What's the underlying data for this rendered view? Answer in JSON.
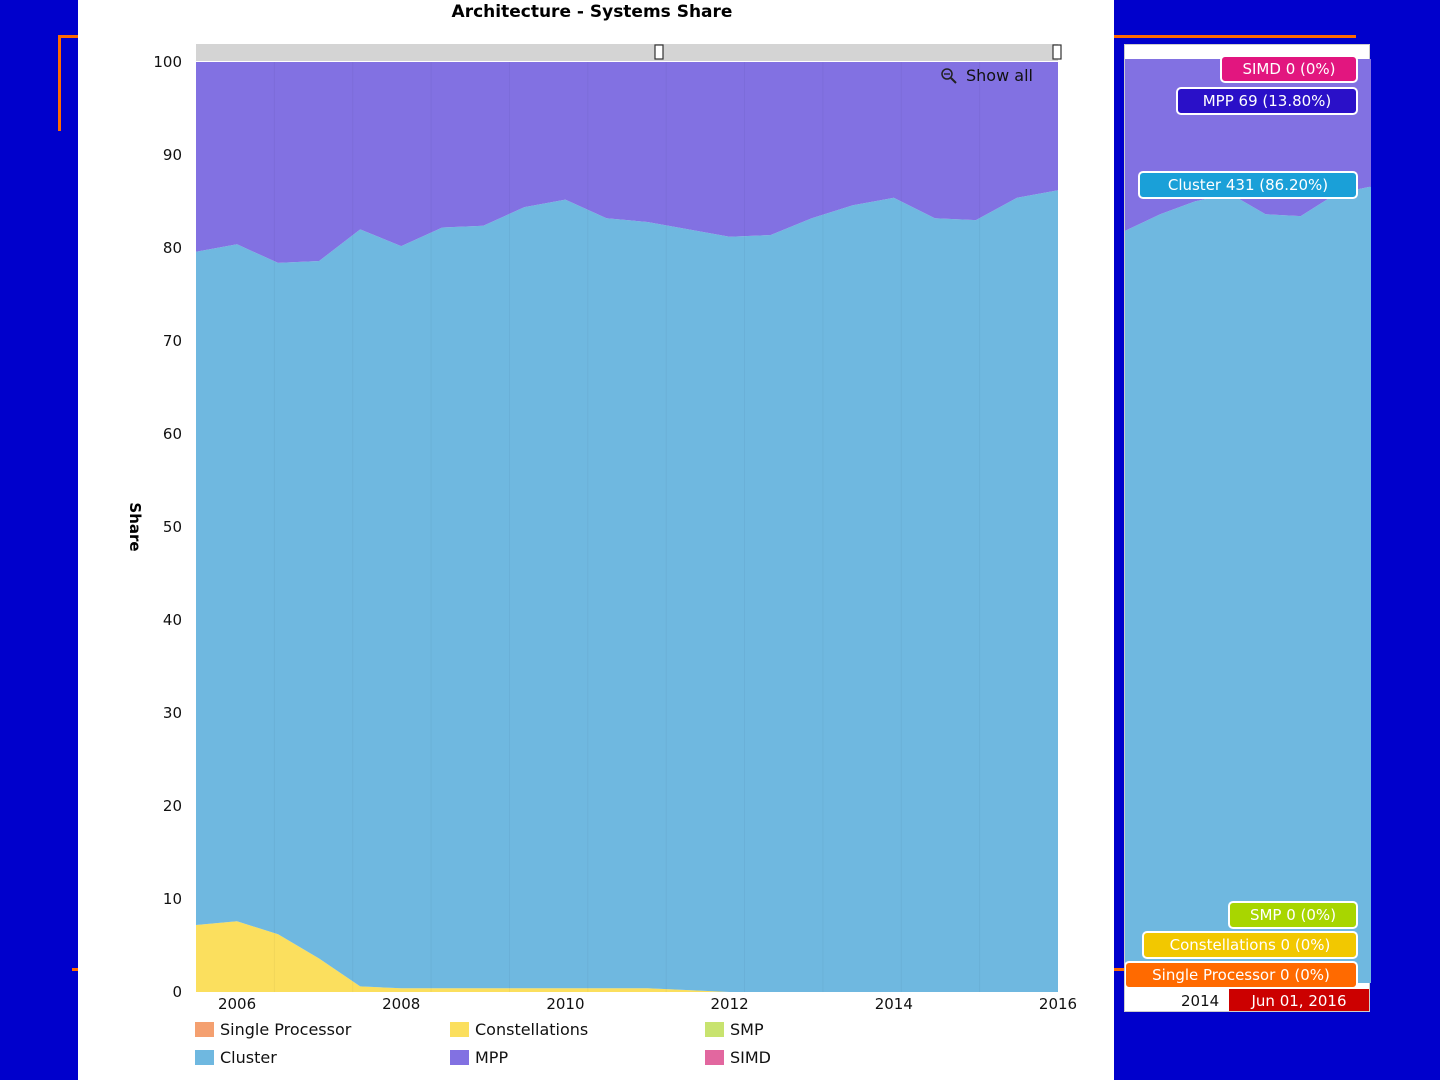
{
  "chart_data": {
    "type": "area",
    "stacked": true,
    "title": "Architecture - Systems Share",
    "ylabel": "Share",
    "xlabel": "",
    "ylim": [
      0,
      100
    ],
    "y_ticks": [
      0,
      10,
      20,
      30,
      40,
      50,
      60,
      70,
      80,
      90,
      100
    ],
    "x_ticks": [
      2006,
      2008,
      2010,
      2012,
      2014,
      2016
    ],
    "x": [
      2005.5,
      2006.0,
      2006.5,
      2007.0,
      2007.5,
      2008.0,
      2008.5,
      2009.0,
      2009.5,
      2010.0,
      2010.5,
      2011.0,
      2011.5,
      2012.0,
      2012.5,
      2013.0,
      2013.5,
      2014.0,
      2014.5,
      2015.0,
      2015.5,
      2016.0
    ],
    "series": [
      {
        "name": "Single Processor",
        "color": "#f4a070",
        "values": [
          0,
          0,
          0,
          0,
          0,
          0,
          0,
          0,
          0,
          0,
          0,
          0,
          0,
          0,
          0,
          0,
          0,
          0,
          0,
          0,
          0,
          0
        ]
      },
      {
        "name": "Constellations",
        "color": "#fbdf5e",
        "values": [
          7.2,
          7.6,
          6.2,
          3.6,
          0.6,
          0.4,
          0.4,
          0.4,
          0.4,
          0.4,
          0.4,
          0.4,
          0.2,
          0,
          0,
          0,
          0,
          0,
          0,
          0,
          0,
          0
        ]
      },
      {
        "name": "SMP",
        "color": "#c8e36f",
        "values": [
          0,
          0,
          0,
          0,
          0,
          0,
          0,
          0,
          0,
          0,
          0,
          0,
          0,
          0,
          0,
          0,
          0,
          0,
          0,
          0,
          0,
          0
        ]
      },
      {
        "name": "Cluster",
        "color": "#6fb8e0",
        "values": [
          72.4,
          72.8,
          72.2,
          75.0,
          81.4,
          79.8,
          81.8,
          82.0,
          84.0,
          84.8,
          82.8,
          82.4,
          81.8,
          81.2,
          81.4,
          83.2,
          84.6,
          85.4,
          83.2,
          83.0,
          85.4,
          86.2
        ]
      },
      {
        "name": "MPP",
        "color": "#8271e2",
        "values": [
          20.4,
          19.6,
          21.6,
          21.4,
          18.0,
          19.8,
          17.8,
          17.6,
          15.6,
          14.8,
          16.8,
          17.2,
          18.0,
          18.8,
          18.6,
          16.8,
          15.4,
          14.6,
          16.8,
          17.0,
          14.6,
          13.8
        ]
      },
      {
        "name": "SIMD",
        "color": "#e2679f",
        "values": [
          0,
          0,
          0,
          0,
          0,
          0,
          0,
          0,
          0,
          0,
          0,
          0,
          0,
          0,
          0,
          0,
          0,
          0,
          0,
          0,
          0,
          0
        ]
      }
    ],
    "legend_position": "bottom",
    "scrollbar": true
  },
  "controls": {
    "show_all_label": "Show all"
  },
  "side_panel": {
    "balloons": [
      {
        "id": "simd",
        "text": "SIMD 0 (0%)",
        "color": "#e2167f"
      },
      {
        "id": "mpp",
        "text": "MPP 69 (13.80%)",
        "color": "#2a10c8"
      },
      {
        "id": "cluster",
        "text": "Cluster 431 (86.20%)",
        "color": "#1aa0d8"
      },
      {
        "id": "smp",
        "text": "SMP 0 (0%)",
        "color": "#a8d600"
      },
      {
        "id": "constellations",
        "text": "Constellations 0 (0%)",
        "color": "#f2c800"
      },
      {
        "id": "single",
        "text": "Single Processor 0 (0%)",
        "color": "#ff6a00"
      }
    ],
    "axis_label": "2014",
    "date_label": "Jun 01, 2016",
    "date_color": "#cc0000"
  }
}
